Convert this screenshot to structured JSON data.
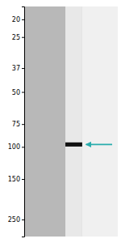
{
  "chart_data": {
    "type": "gel",
    "values": [
      97
    ],
    "color": "#111111",
    "log": "y",
    "ylim": [
      310,
      17
    ],
    "yticks": [
      250,
      150,
      100,
      75,
      50,
      37,
      25,
      20
    ],
    "tick_labels": "y"
  }
}
